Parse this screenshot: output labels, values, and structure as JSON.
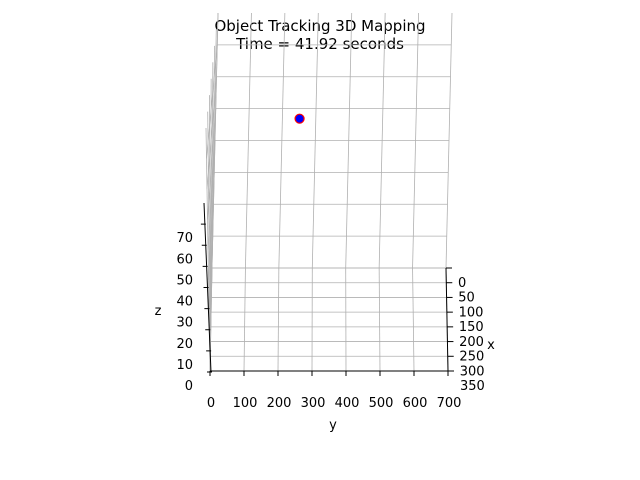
{
  "title_line1": "Object Tracking 3D Mapping",
  "title_line2": "Time =  41.92 seconds",
  "chart_data": {
    "type": "scatter",
    "title": "Object Tracking 3D Mapping",
    "subtitle": "Time =  41.92 seconds",
    "xlabel": "x",
    "ylabel": "y",
    "zlabel": "z",
    "x_ticks": [
      "0",
      "50",
      "100",
      "150",
      "200",
      "250",
      "300",
      "350"
    ],
    "y_ticks": [
      "0",
      "100",
      "200",
      "300",
      "400",
      "500",
      "600",
      "700"
    ],
    "z_ticks": [
      "0",
      "10",
      "20",
      "30",
      "40",
      "50",
      "60",
      "70"
    ],
    "xlim": [
      0,
      350
    ],
    "ylim": [
      0,
      700
    ],
    "zlim": [
      0,
      80
    ],
    "grid": true,
    "points": [
      {
        "x": 170,
        "y": 260,
        "z": 64,
        "face_color": "#0000ff",
        "edge_color": "#ff0000"
      }
    ]
  }
}
